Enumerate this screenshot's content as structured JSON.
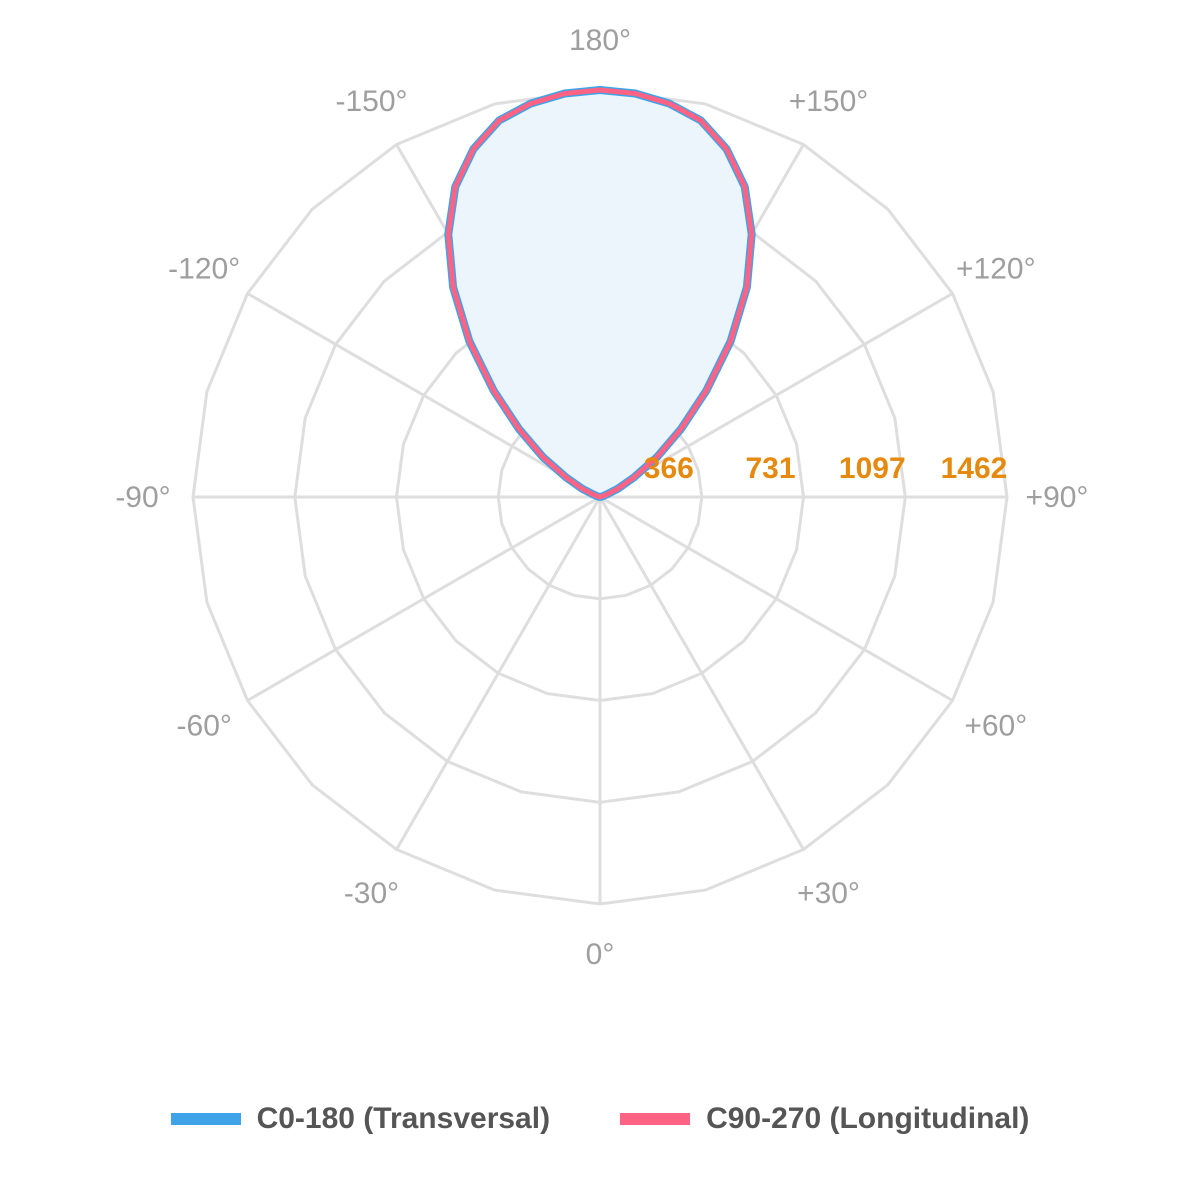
{
  "chart_data": {
    "type": "polar",
    "angle_labels": [
      "180°",
      "+150°",
      "+120°",
      "+90°",
      "+60°",
      "+30°",
      "0°",
      "-30°",
      "-60°",
      "-90°",
      "-120°",
      "-150°"
    ],
    "angle_values": [
      180,
      150,
      120,
      90,
      60,
      30,
      0,
      -30,
      -60,
      -90,
      -120,
      -150
    ],
    "radial_ticks": [
      366,
      731,
      1097,
      1462
    ],
    "rmax": 1462,
    "grid": true,
    "legend_position": "bottom",
    "series": [
      {
        "name": "C0-180 (Transversal)",
        "color": "#3ea3e8",
        "angles": [
          -180,
          -175,
          -170,
          -165,
          -160,
          -155,
          -150,
          -145,
          -140,
          -135,
          -130,
          -125,
          -120,
          -115,
          -110,
          -105,
          -100,
          -95,
          -90,
          -60,
          0,
          60,
          90,
          95,
          100,
          105,
          110,
          115,
          120,
          125,
          130,
          135,
          140,
          145,
          150,
          155,
          160,
          165,
          170,
          175,
          180
        ],
        "values": [
          1462,
          1455,
          1435,
          1400,
          1330,
          1230,
          1090,
          920,
          730,
          540,
          380,
          250,
          140,
          70,
          25,
          8,
          2,
          0,
          0,
          0,
          0,
          0,
          0,
          0,
          2,
          8,
          25,
          70,
          140,
          250,
          380,
          540,
          730,
          920,
          1090,
          1230,
          1330,
          1400,
          1435,
          1455,
          1462
        ]
      },
      {
        "name": "C90-270 (Longitudinal)",
        "color": "#ff6384",
        "angles": [
          -180,
          -175,
          -170,
          -165,
          -160,
          -155,
          -150,
          -145,
          -140,
          -135,
          -130,
          -125,
          -120,
          -115,
          -110,
          -105,
          -100,
          -95,
          -90,
          -60,
          0,
          60,
          90,
          95,
          100,
          105,
          110,
          115,
          120,
          125,
          130,
          135,
          140,
          145,
          150,
          155,
          160,
          165,
          170,
          175,
          180
        ],
        "values": [
          1462,
          1455,
          1435,
          1400,
          1330,
          1230,
          1090,
          920,
          730,
          540,
          380,
          250,
          140,
          70,
          25,
          8,
          2,
          0,
          0,
          0,
          0,
          0,
          0,
          0,
          2,
          8,
          25,
          70,
          140,
          250,
          380,
          540,
          730,
          920,
          1090,
          1230,
          1330,
          1400,
          1435,
          1455,
          1462
        ]
      }
    ],
    "fill_color": "#ecf4fc",
    "grid_color": "#dedede",
    "tick_label_color": "#e6890f",
    "angle_label_color": "#9e9e9e"
  }
}
